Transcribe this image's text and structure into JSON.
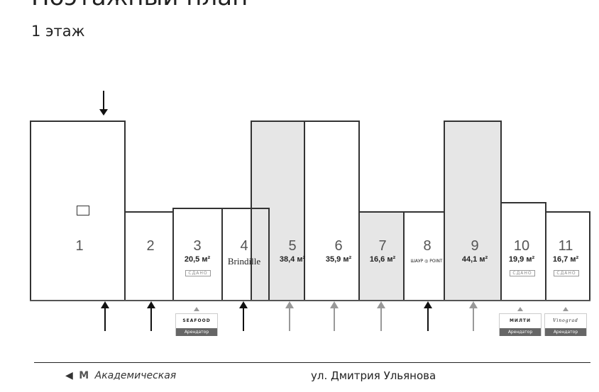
{
  "header": {
    "title": "Поэтажный план",
    "floor": "1 этаж"
  },
  "units": [
    {
      "number": "1"
    },
    {
      "number": "2"
    },
    {
      "number": "3",
      "area": "20,5 м²",
      "status": "СДАНО"
    },
    {
      "number": "4",
      "brand": "Brindille"
    },
    {
      "number": "5",
      "area": "38,4 м²"
    },
    {
      "number": "6",
      "area": "35,9 м²"
    },
    {
      "number": "7",
      "area": "16,6 м²"
    },
    {
      "number": "8",
      "brand": "ШАУР ◎ POINT"
    },
    {
      "number": "9",
      "area": "44,1 м²"
    },
    {
      "number": "10",
      "area": "19,9 м²",
      "status": "СДАНО"
    },
    {
      "number": "11",
      "area": "16,7 м²",
      "status": "СДАНО"
    }
  ],
  "tenants": [
    {
      "logo": "SEAFOOD",
      "label": "Арендатор"
    },
    {
      "logo": "МИЛТИ",
      "label": "Арендатор"
    },
    {
      "logo": "Vinograd",
      "label": "Арендатор"
    }
  ],
  "footer": {
    "metro": "Академическая",
    "street": "ул. Дмитрия Ульянова",
    "metro_icon": "metro-m-icon"
  },
  "colors": {
    "leased_unit": "#e6e6e6",
    "label_bg": "#666666"
  }
}
